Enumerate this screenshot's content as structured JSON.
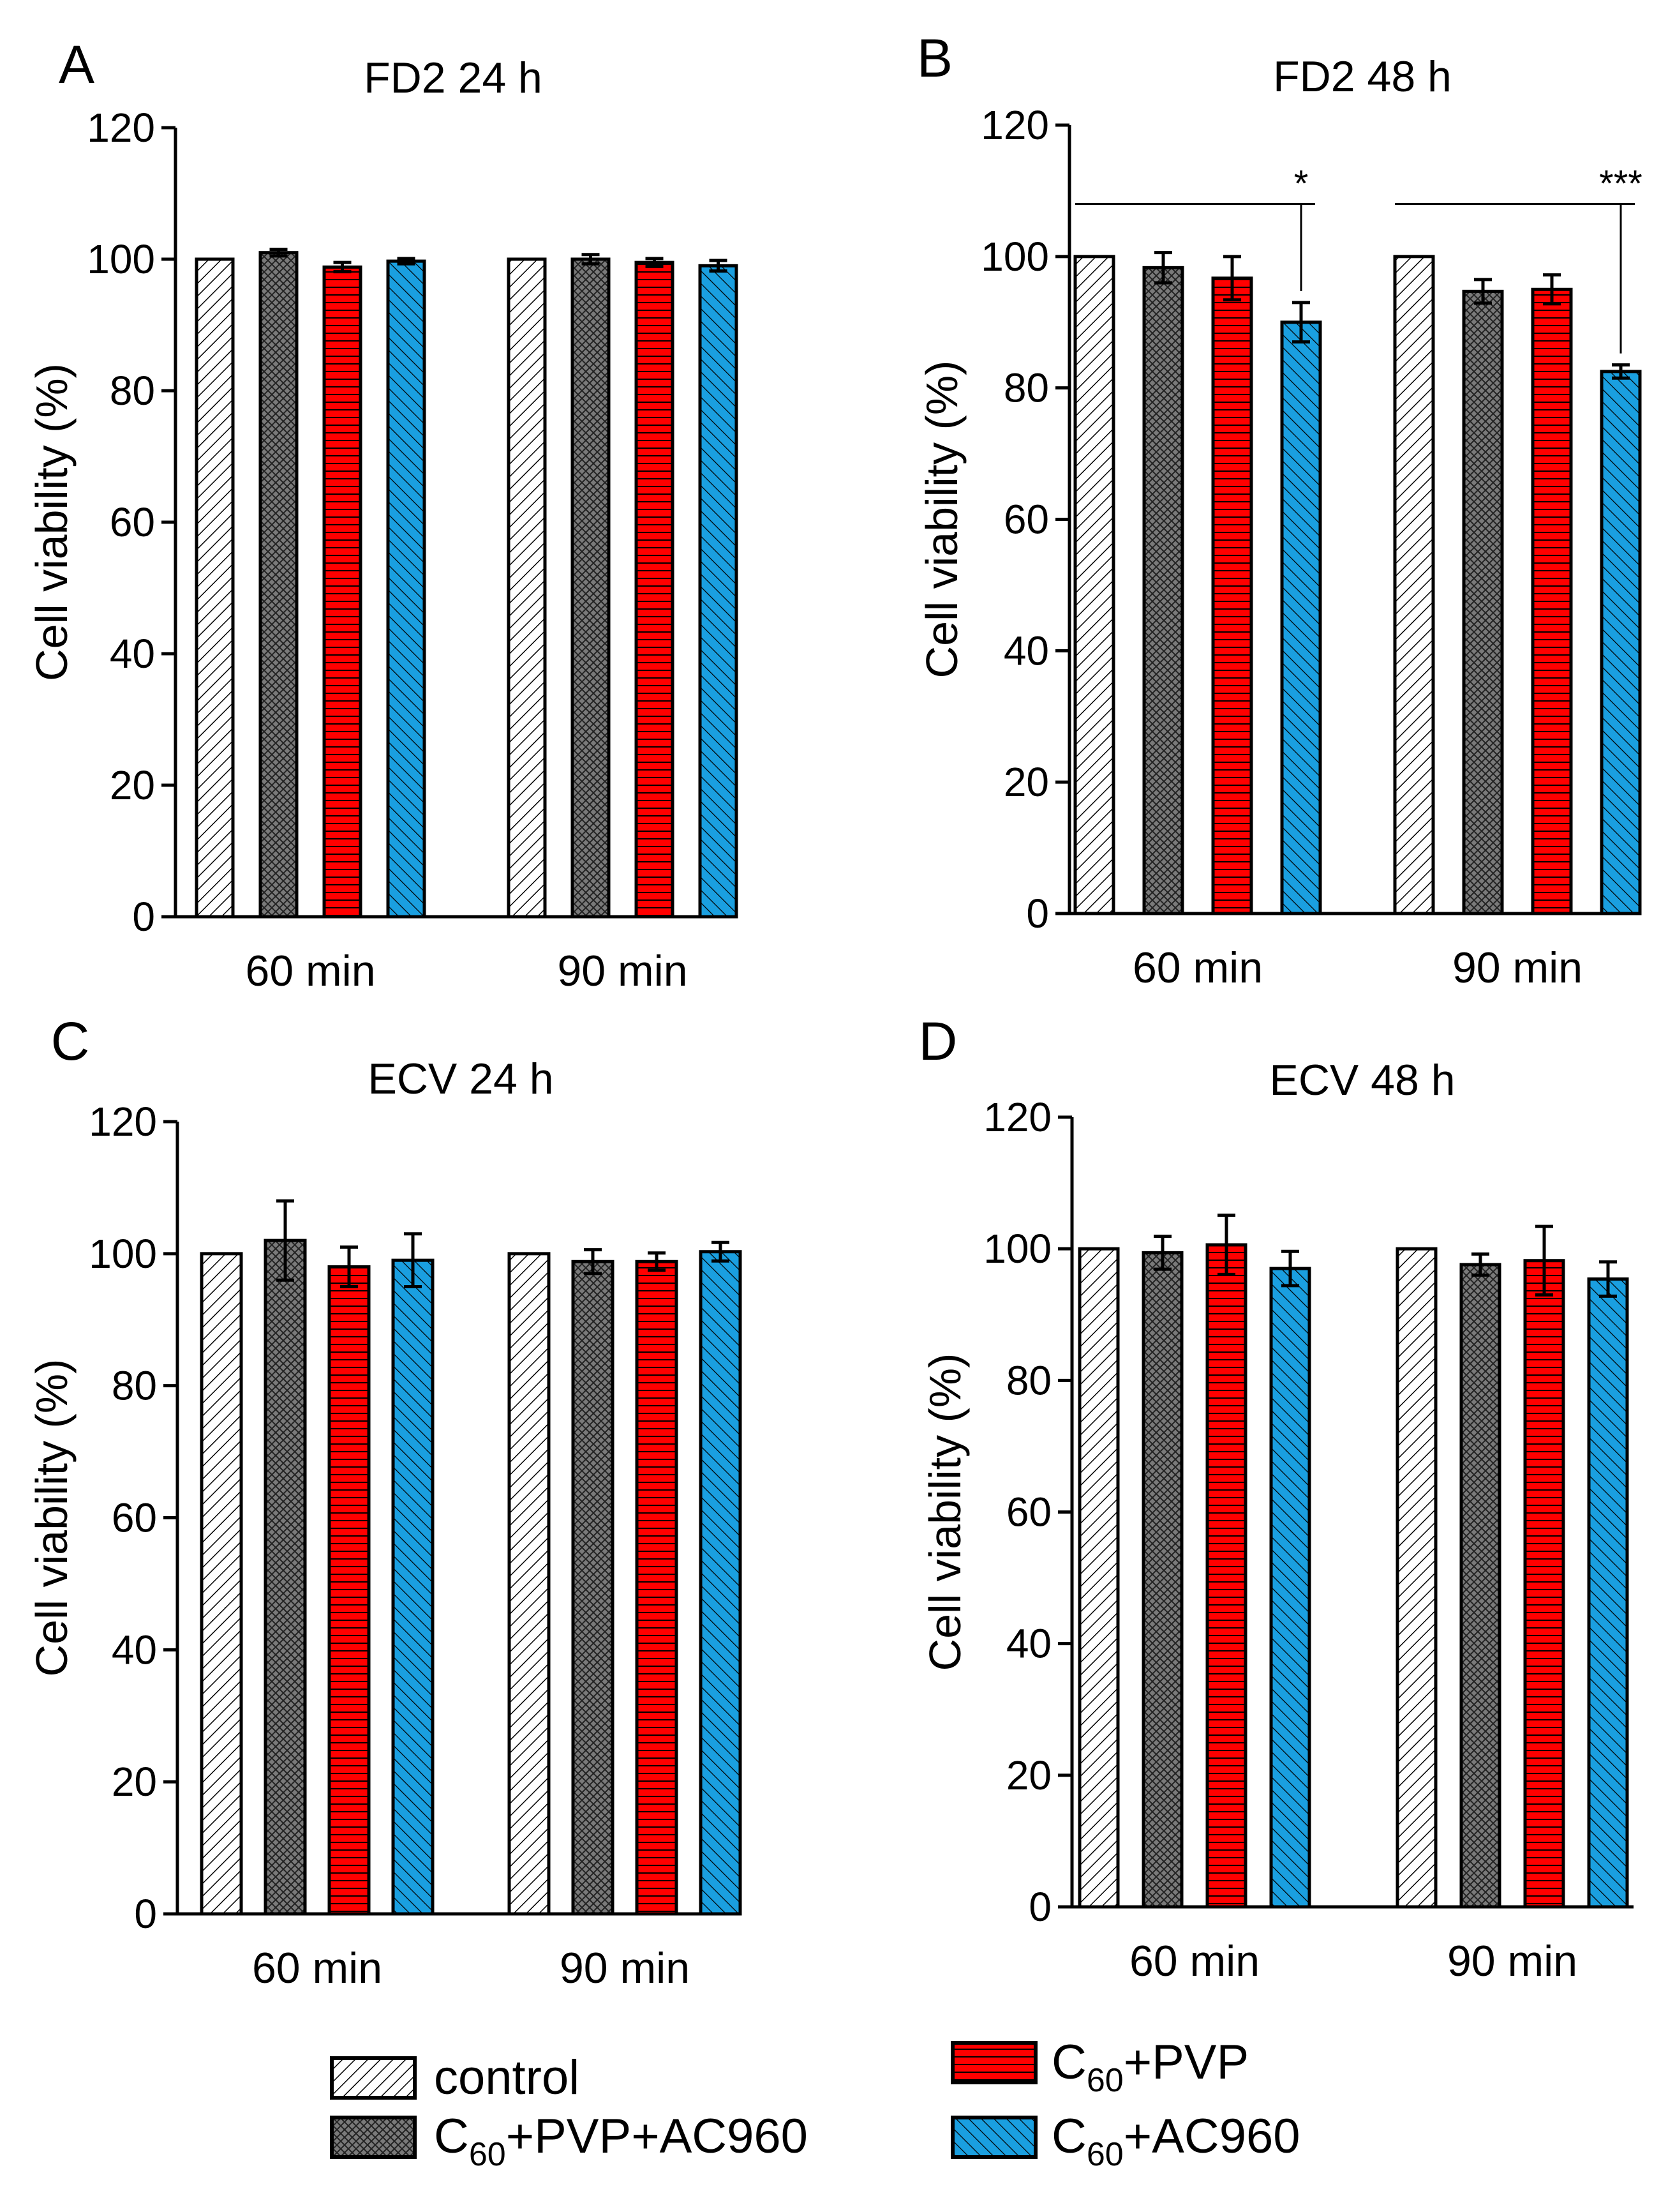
{
  "figure": {
    "legend": [
      {
        "series": "control",
        "label": "control"
      },
      {
        "series": "c60_pvp_ac960",
        "label_main": "C",
        "label_sub": "60",
        "label_rest": "+PVP+AC960"
      },
      {
        "series": "c60_pvp",
        "label_main": "C",
        "label_sub": "60",
        "label_rest": "+PVP"
      },
      {
        "series": "c60_ac960",
        "label_main": "C",
        "label_sub": "60",
        "label_rest": "+AC960"
      }
    ],
    "colors": {
      "control": "#ffffff",
      "c60_pvp_ac960": "#7a7a7a",
      "c60_pvp": "#ff0000",
      "c60_ac960": "#1a9fe0"
    }
  },
  "chart_data": [
    {
      "panel": "A",
      "type": "bar",
      "title": "FD2 24 h",
      "ylabel": "Cell viability (%)",
      "xlabel": "",
      "ylim": [
        0,
        120
      ],
      "yticks": [
        0,
        20,
        40,
        60,
        80,
        100,
        120
      ],
      "categories": [
        "60 min",
        "90 min"
      ],
      "series": [
        {
          "name": "control",
          "values": [
            100,
            100
          ],
          "errors": [
            0,
            0
          ]
        },
        {
          "name": "C60+PVP+AC960",
          "values": [
            101,
            100
          ],
          "errors": [
            0.5,
            0.7
          ]
        },
        {
          "name": "C60+PVP",
          "values": [
            98.8,
            99.5
          ],
          "errors": [
            0.7,
            0.6
          ]
        },
        {
          "name": "C60+AC960",
          "values": [
            99.7,
            99
          ],
          "errors": [
            0.4,
            0.8
          ]
        }
      ],
      "significance": []
    },
    {
      "panel": "B",
      "type": "bar",
      "title": "FD2 48 h",
      "ylabel": "Cell viability (%)",
      "xlabel": "",
      "ylim": [
        0,
        120
      ],
      "yticks": [
        0,
        20,
        40,
        60,
        80,
        100,
        120
      ],
      "categories": [
        "60 min",
        "90 min"
      ],
      "series": [
        {
          "name": "control",
          "values": [
            100,
            100
          ],
          "errors": [
            0,
            0
          ]
        },
        {
          "name": "C60+PVP+AC960",
          "values": [
            98.3,
            94.7
          ],
          "errors": [
            2.3,
            1.8
          ]
        },
        {
          "name": "C60+PVP",
          "values": [
            96.7,
            95
          ],
          "errors": [
            3.3,
            2.2
          ]
        },
        {
          "name": "C60+AC960",
          "values": [
            90,
            82.5
          ],
          "errors": [
            3,
            1
          ]
        }
      ],
      "significance": [
        {
          "category": "60 min",
          "label": "*",
          "level": 108
        },
        {
          "category": "90 min",
          "label": "***",
          "level": 108
        }
      ]
    },
    {
      "panel": "C",
      "type": "bar",
      "title": "ECV 24 h",
      "ylabel": "Cell viability (%)",
      "xlabel": "",
      "ylim": [
        0,
        120
      ],
      "yticks": [
        0,
        20,
        40,
        60,
        80,
        100,
        120
      ],
      "categories": [
        "60 min",
        "90 min"
      ],
      "series": [
        {
          "name": "control",
          "values": [
            100,
            100
          ],
          "errors": [
            0,
            0
          ]
        },
        {
          "name": "C60+PVP+AC960",
          "values": [
            102,
            98.8
          ],
          "errors": [
            6,
            1.8
          ]
        },
        {
          "name": "C60+PVP",
          "values": [
            98,
            98.8
          ],
          "errors": [
            3,
            1.3
          ]
        },
        {
          "name": "C60+AC960",
          "values": [
            99,
            100.3
          ],
          "errors": [
            4,
            1.4
          ]
        }
      ],
      "significance": []
    },
    {
      "panel": "D",
      "type": "bar",
      "title": "ECV 48 h",
      "ylabel": "Cell viability (%)",
      "xlabel": "",
      "ylim": [
        0,
        120
      ],
      "yticks": [
        0,
        20,
        40,
        60,
        80,
        100,
        120
      ],
      "categories": [
        "60 min",
        "90 min"
      ],
      "series": [
        {
          "name": "control",
          "values": [
            100,
            100
          ],
          "errors": [
            0,
            0
          ]
        },
        {
          "name": "C60+PVP+AC960",
          "values": [
            99.4,
            97.6
          ],
          "errors": [
            2.5,
            1.6
          ]
        },
        {
          "name": "C60+PVP",
          "values": [
            100.6,
            98.2
          ],
          "errors": [
            4.5,
            5.2
          ]
        },
        {
          "name": "C60+AC960",
          "values": [
            97,
            95.4
          ],
          "errors": [
            2.6,
            2.6
          ]
        }
      ],
      "significance": []
    }
  ]
}
